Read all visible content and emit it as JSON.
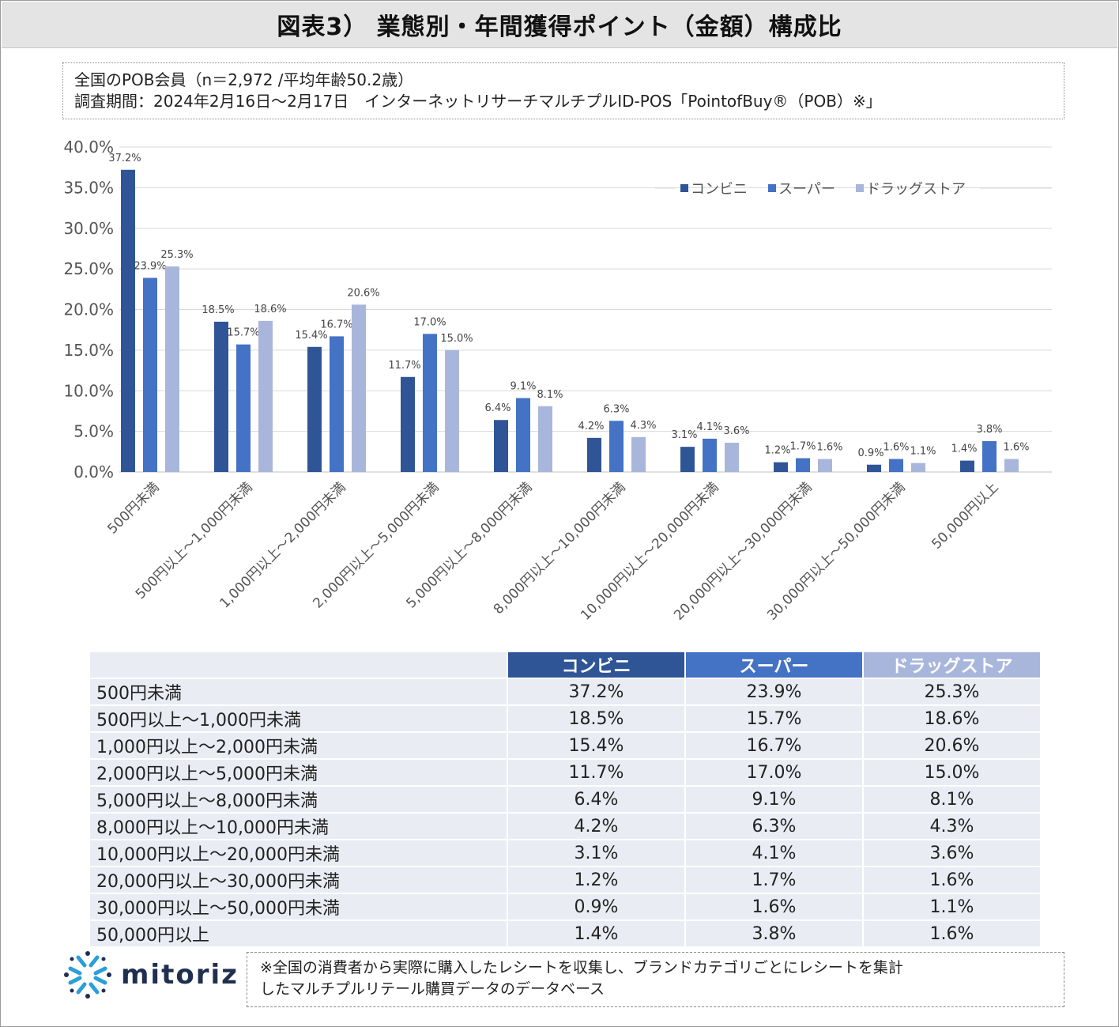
{
  "title": "図表3） 業態別・年間獲得ポイント（金額）構成比",
  "info": {
    "line1": "全国のPOB会員（n＝2,972 /平均年齢50.2歳）",
    "line2": "調査期間：2024年2月16日～2月17日　インターネットリサーチマルチプルID-POS「PointofBuy®（POB）※」"
  },
  "chart_data": {
    "type": "bar",
    "categories": [
      "500円未満",
      "500円以上～1,000円未満",
      "1,000円以上～2,000円未満",
      "2,000円以上～5,000円未満",
      "5,000円以上～8,000円未満",
      "8,000円以上～10,000円未満",
      "10,000円以上～20,000円未満",
      "20,000円以上～30,000円未満",
      "30,000円以上～50,000円未満",
      "50,000円以上"
    ],
    "series": [
      {
        "name": "コンビニ",
        "color": "#2f5597",
        "values": [
          37.2,
          18.5,
          15.4,
          11.7,
          6.4,
          4.2,
          3.1,
          1.2,
          0.9,
          1.4
        ]
      },
      {
        "name": "スーパー",
        "color": "#4472c4",
        "values": [
          23.9,
          15.7,
          16.7,
          17.0,
          9.1,
          6.3,
          4.1,
          1.7,
          1.6,
          3.8
        ]
      },
      {
        "name": "ドラッグストア",
        "color": "#a9b6dc",
        "values": [
          25.3,
          18.6,
          20.6,
          15.0,
          8.1,
          4.3,
          3.6,
          1.6,
          1.1,
          1.6
        ]
      }
    ],
    "ylim": [
      0,
      40
    ],
    "yticks": [
      "0.0%",
      "5.0%",
      "10.0%",
      "15.0%",
      "20.0%",
      "25.0%",
      "30.0%",
      "35.0%",
      "40.0%"
    ],
    "grid": true,
    "legend": "top-right",
    "value_format": "%"
  },
  "table": {
    "headers": [
      "コンビニ",
      "スーパー",
      "ドラッグストア"
    ],
    "header_colors": [
      "#2f5597",
      "#4472c4",
      "#a9b6dc"
    ],
    "rows": [
      {
        "label": "500円未満",
        "values": [
          "37.2%",
          "23.9%",
          "25.3%"
        ]
      },
      {
        "label": "500円以上～1,000円未満",
        "values": [
          "18.5%",
          "15.7%",
          "18.6%"
        ]
      },
      {
        "label": "1,000円以上～2,000円未満",
        "values": [
          "15.4%",
          "16.7%",
          "20.6%"
        ]
      },
      {
        "label": "2,000円以上～5,000円未満",
        "values": [
          "11.7%",
          "17.0%",
          "15.0%"
        ]
      },
      {
        "label": "5,000円以上～8,000円未満",
        "values": [
          "6.4%",
          "9.1%",
          "8.1%"
        ]
      },
      {
        "label": "8,000円以上～10,000円未満",
        "values": [
          "4.2%",
          "6.3%",
          "4.3%"
        ]
      },
      {
        "label": "10,000円以上～20,000円未満",
        "values": [
          "3.1%",
          "4.1%",
          "3.6%"
        ]
      },
      {
        "label": "20,000円以上～30,000円未満",
        "values": [
          "1.2%",
          "1.7%",
          "1.6%"
        ]
      },
      {
        "label": "30,000円以上～50,000円未満",
        "values": [
          "0.9%",
          "1.6%",
          "1.1%"
        ]
      },
      {
        "label": "50,000円以上",
        "values": [
          "1.4%",
          "3.8%",
          "1.6%"
        ]
      }
    ]
  },
  "logo": {
    "name": "mitoriz",
    "icon": "mitoriz-logo-icon"
  },
  "note": {
    "line1": "※全国の消費者から実際に購入したレシートを収集し、ブランドカテゴリごとにレシートを集計",
    "line2": "したマルチプルリテール購買データのデータベース"
  }
}
